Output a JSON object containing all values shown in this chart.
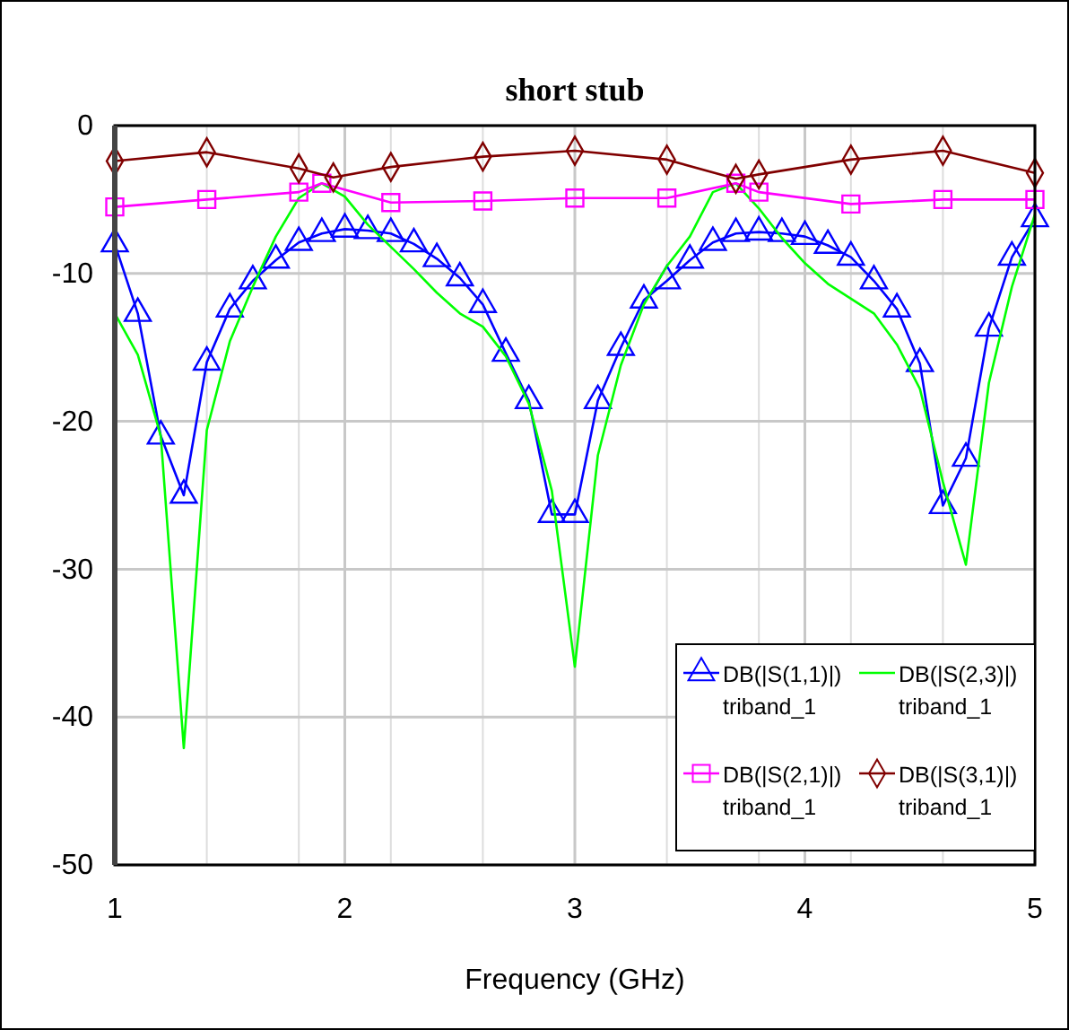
{
  "chart_data": {
    "type": "line",
    "title": "short stub",
    "xlabel": "Frequency (GHz)",
    "xlim": [
      1,
      5
    ],
    "xticks": [
      1,
      2,
      3,
      4,
      5
    ],
    "ylim": [
      -50,
      0
    ],
    "yticks": [
      -50,
      -40,
      -30,
      -20,
      -10,
      0
    ],
    "grid": true,
    "legend": "bottom right",
    "series": [
      {
        "name": "DB(|S(1,1)|)\ntriband_1",
        "color": "#0000ff",
        "marker": "triangle",
        "x": [
          1,
          1.1,
          1.2,
          1.3,
          1.4,
          1.5,
          1.6,
          1.7,
          1.8,
          1.9,
          2,
          2.1,
          2.2,
          2.3,
          2.4,
          2.5,
          2.6,
          2.7,
          2.8,
          2.9,
          3,
          3.1,
          3.2,
          3.3,
          3.4,
          3.5,
          3.6,
          3.7,
          3.8,
          3.9,
          4,
          4.1,
          4.2,
          4.3,
          4.4,
          4.5,
          4.6,
          4.7,
          4.8,
          4.9,
          5
        ],
        "values": [
          -8,
          -12.7,
          -21,
          -25,
          -16,
          -12.4,
          -10.5,
          -9.1,
          -7.9,
          -7.3,
          -7,
          -7.1,
          -7.3,
          -8,
          -9,
          -10.3,
          -12.1,
          -15.4,
          -18.6,
          -26.3,
          -26.3,
          -18.6,
          -15,
          -11.8,
          -10.5,
          -9.1,
          -7.9,
          -7.3,
          -7.2,
          -7.3,
          -7.5,
          -8.1,
          -8.9,
          -10.5,
          -12.4,
          -16.1,
          -25.7,
          -22.5,
          -13.7,
          -8.9,
          -6.3
        ]
      },
      {
        "name": "DB(|S(2,3)|)\ntriband_1",
        "color": "#00ff00",
        "marker": "none",
        "x": [
          1,
          1.1,
          1.2,
          1.3,
          1.4,
          1.5,
          1.6,
          1.7,
          1.8,
          1.9,
          2,
          2.1,
          2.2,
          2.3,
          2.4,
          2.5,
          2.6,
          2.7,
          2.8,
          2.9,
          3,
          3.1,
          3.2,
          3.3,
          3.4,
          3.5,
          3.6,
          3.7,
          3.8,
          3.9,
          4,
          4.1,
          4.2,
          4.3,
          4.4,
          4.5,
          4.6,
          4.7,
          4.8,
          4.9,
          5
        ],
        "values": [
          -12.7,
          -15.5,
          -21,
          -42.1,
          -20.6,
          -14.6,
          -10.9,
          -7.5,
          -4.9,
          -3.9,
          -4.8,
          -6.7,
          -8.2,
          -9.7,
          -11.3,
          -12.7,
          -13.6,
          -15.6,
          -18.8,
          -24.7,
          -36.6,
          -22.3,
          -16.2,
          -12.1,
          -9.5,
          -7.5,
          -4.5,
          -3.9,
          -5.6,
          -7.6,
          -9.3,
          -10.7,
          -11.7,
          -12.7,
          -14.8,
          -17.8,
          -24.1,
          -29.7,
          -17.4,
          -10.9,
          -6
        ]
      },
      {
        "name": "DB(|S(2,1)|)\ntriband_1",
        "color": "#ff00ff",
        "marker": "square",
        "x": [
          1,
          1.4,
          1.8,
          1.9,
          2.2,
          2.6,
          3,
          3.4,
          3.7,
          3.8,
          4.2,
          4.6,
          5
        ],
        "values": [
          -5.5,
          -5,
          -4.5,
          -3.9,
          -5.2,
          -5.1,
          -4.9,
          -4.9,
          -3.9,
          -4.5,
          -5.3,
          -5,
          -5
        ]
      },
      {
        "name": "DB(|S(3,1)|)\ntriband_1",
        "color": "#800000",
        "marker": "diamond",
        "x": [
          1,
          1.4,
          1.8,
          1.95,
          2.2,
          2.6,
          3,
          3.4,
          3.7,
          3.8,
          4.2,
          4.6,
          5
        ],
        "values": [
          -2.4,
          -1.8,
          -2.9,
          -3.5,
          -2.8,
          -2.1,
          -1.7,
          -2.3,
          -3.6,
          -3.3,
          -2.3,
          -1.7,
          -3.2
        ]
      }
    ]
  }
}
